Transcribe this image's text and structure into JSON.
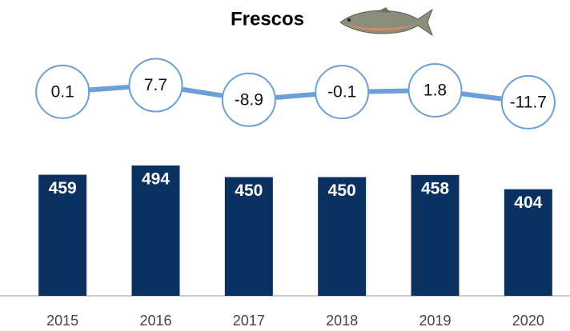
{
  "chart_data": {
    "type": "bar",
    "title": "Frescos",
    "categories": [
      "2015",
      "2016",
      "2017",
      "2018",
      "2019",
      "2020"
    ],
    "series": [
      {
        "type": "bar",
        "color": "#0b3160",
        "values": [
          459,
          494,
          450,
          450,
          458,
          404
        ]
      },
      {
        "type": "line",
        "color": "#6c9fd6",
        "axis": "y2",
        "values": [
          0.1,
          7.7,
          -8.9,
          -0.1,
          1.8,
          -11.7
        ]
      }
    ],
    "ylim": [
      0,
      1000
    ],
    "y2lim": [
      -50,
      50
    ],
    "grid": false
  }
}
